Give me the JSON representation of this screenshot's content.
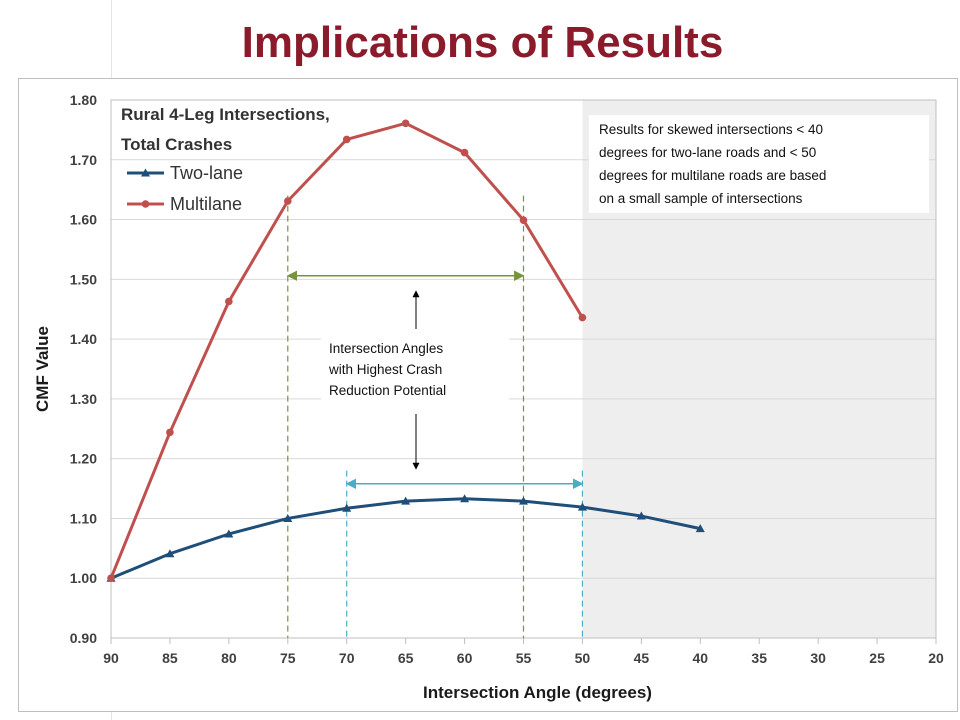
{
  "slide": {
    "title": "Implications of Results"
  },
  "colors": {
    "two_lane": "#1f4e79",
    "multilane": "#c0504d",
    "shade": "#eeeeee",
    "green_guide": "#77933c",
    "teal_guide": "#4bacc6",
    "title": "#8b1a2b"
  },
  "chart_data": {
    "type": "line",
    "title": "Rural 4-Leg Intersections, Total Crashes",
    "title_lines": [
      "Rural 4-Leg Intersections,",
      "Total Crashes"
    ],
    "xlabel": "Intersection Angle (degrees)",
    "ylabel": "CMF Value",
    "xlim": [
      90,
      20
    ],
    "x_reversed": true,
    "ylim": [
      0.9,
      1.8
    ],
    "xticks": [
      90,
      85,
      80,
      75,
      70,
      65,
      60,
      55,
      50,
      45,
      40,
      35,
      30,
      25,
      20
    ],
    "yticks": [
      0.9,
      1.0,
      1.1,
      1.2,
      1.3,
      1.4,
      1.5,
      1.6,
      1.7,
      1.8
    ],
    "ytick_labels": [
      "0.90",
      "1.00",
      "1.10",
      "1.20",
      "1.30",
      "1.40",
      "1.50",
      "1.60",
      "1.70",
      "1.80"
    ],
    "grid": "horizontal",
    "legend_position": "top-left",
    "series": [
      {
        "name": "Two-lane",
        "marker": "triangle",
        "x": [
          90,
          85,
          80,
          75,
          70,
          65,
          60,
          55,
          50,
          45,
          40
        ],
        "y": [
          1.0,
          1.041,
          1.074,
          1.1,
          1.117,
          1.129,
          1.133,
          1.129,
          1.119,
          1.104,
          1.083
        ]
      },
      {
        "name": "Multilane",
        "marker": "circle",
        "x": [
          90,
          85,
          80,
          75,
          70,
          65,
          60,
          55,
          50
        ],
        "y": [
          1.0,
          1.244,
          1.463,
          1.631,
          1.734,
          1.761,
          1.712,
          1.599,
          1.436
        ]
      }
    ],
    "shaded_region": {
      "x_from": 50,
      "x_to": 20
    },
    "reference_lines": [
      {
        "x": 75,
        "color": "green"
      },
      {
        "x": 55,
        "color": "green"
      },
      {
        "x": 70,
        "color": "teal"
      },
      {
        "x": 50,
        "color": "teal"
      }
    ],
    "ranges": [
      {
        "from": 75,
        "to": 55,
        "y": 1.506,
        "color": "green"
      },
      {
        "from": 70,
        "to": 50,
        "y": 1.158,
        "color": "teal"
      }
    ],
    "annotations": {
      "range_label": [
        "Intersection Angles",
        "with Highest Crash",
        "Reduction Potential"
      ],
      "note": [
        "Results for skewed intersections < 40",
        "degrees for two-lane roads and < 50",
        "degrees for multilane roads are based",
        "on a small sample of intersections"
      ]
    }
  }
}
